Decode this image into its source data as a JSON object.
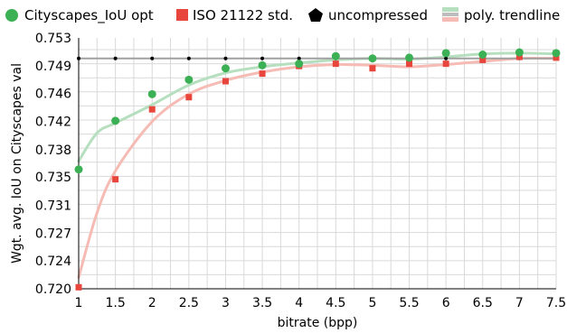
{
  "chart_data": {
    "type": "scatter",
    "xlabel": "bitrate (bpp)",
    "ylabel": "Wgt. avg. IoU on Cityscapes val",
    "xlim": [
      1,
      7.5
    ],
    "ylim": [
      0.72,
      0.753
    ],
    "xticks": [
      1,
      1.5,
      2,
      2.5,
      3,
      3.5,
      4,
      4.5,
      5,
      5.5,
      6,
      6.5,
      7,
      7.5
    ],
    "xtick_labels": [
      "1",
      "1.5",
      "2",
      "2.5",
      "3",
      "3.5",
      "4",
      "4.5",
      "5",
      "5.5",
      "6",
      "6.5",
      "7",
      "7.5"
    ],
    "yticks": [
      0.72,
      0.7237,
      0.7273,
      0.731,
      0.7347,
      0.7383,
      0.742,
      0.7457,
      0.7493,
      0.753
    ],
    "ytick_labels": [
      "0.720",
      "0.724",
      "0.727",
      "0.731",
      "0.735",
      "0.738",
      "0.742",
      "0.746",
      "0.749",
      "0.753"
    ],
    "grid": true,
    "legend_position": "top",
    "legend": [
      {
        "label": "Cityscapes_IoU opt",
        "marker": "circle",
        "color": "#3cb054"
      },
      {
        "label": "ISO 21122 std.",
        "marker": "square",
        "color": "#e8453c"
      },
      {
        "label": "uncompressed",
        "marker": "pentagon",
        "color": "#000000"
      },
      {
        "label": "poly. trendline",
        "marker": "line-pair",
        "colors": [
          "#b6dfbf",
          "#bdbdbd",
          "#f6bbb4"
        ]
      }
    ],
    "x": [
      1,
      1.5,
      2,
      2.5,
      3,
      3.5,
      4,
      4.5,
      5,
      5.5,
      6,
      6.5,
      7,
      7.5
    ],
    "series": [
      {
        "name": "Cityscapes_IoU opt",
        "color": "#3cb054",
        "marker": "circle",
        "values": [
          0.7357,
          0.7421,
          0.7456,
          0.7475,
          0.749,
          0.7494,
          0.7496,
          0.7506,
          0.7503,
          0.7504,
          0.751,
          0.7508,
          0.7511,
          0.751
        ]
      },
      {
        "name": "ISO 21122 std.",
        "color": "#e8453c",
        "marker": "square",
        "values": [
          0.7202,
          0.7344,
          0.7436,
          0.7452,
          0.7473,
          0.7483,
          0.7493,
          0.7496,
          0.749,
          0.7496,
          0.7496,
          0.7501,
          0.7505,
          0.7504
        ]
      },
      {
        "name": "uncompressed",
        "color": "#000000",
        "marker": "dot",
        "values": [
          0.7503,
          0.7503,
          0.7503,
          0.7503,
          0.7503,
          0.7503,
          0.7503,
          0.7503,
          0.7503,
          0.7503,
          0.7503,
          0.7503,
          0.7503,
          0.7503
        ]
      }
    ],
    "trendlines": [
      {
        "name": "Cityscapes_IoU opt trend",
        "color": "#b6dfbf",
        "x": [
          1,
          1.25,
          1.5,
          2,
          2.5,
          3,
          3.5,
          4,
          4.5,
          5,
          5.5,
          6,
          6.5,
          7,
          7.5
        ],
        "values": [
          0.7368,
          0.7405,
          0.7418,
          0.7442,
          0.7468,
          0.7484,
          0.7492,
          0.7497,
          0.7501,
          0.7503,
          0.7502,
          0.7505,
          0.7509,
          0.751,
          0.7509
        ]
      },
      {
        "name": "ISO 21122 std. trend",
        "color": "#f6bbb4",
        "x": [
          1,
          1.25,
          1.5,
          2,
          2.5,
          3,
          3.5,
          4,
          4.5,
          5,
          5.5,
          6,
          6.5,
          7,
          7.5
        ],
        "values": [
          0.7215,
          0.73,
          0.7355,
          0.742,
          0.7456,
          0.7474,
          0.7485,
          0.7492,
          0.7495,
          0.7494,
          0.7492,
          0.7495,
          0.7499,
          0.7503,
          0.7503
        ]
      },
      {
        "name": "uncompressed trend",
        "color": "#a0a0a0",
        "x": [
          1,
          7.5
        ],
        "values": [
          0.7503,
          0.7503
        ]
      }
    ]
  }
}
